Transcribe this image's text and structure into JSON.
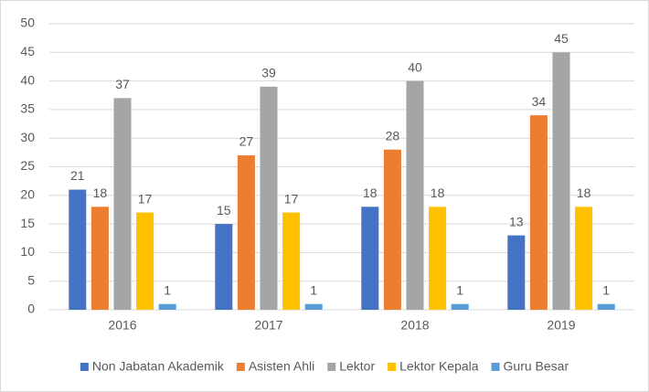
{
  "chart_data": {
    "type": "bar",
    "categories": [
      "2016",
      "2017",
      "2018",
      "2019"
    ],
    "series": [
      {
        "name": "Non Jabatan Akademik",
        "color": "#4472c4",
        "values": [
          21,
          15,
          18,
          13
        ]
      },
      {
        "name": "Asisten Ahli",
        "color": "#ed7d31",
        "values": [
          18,
          27,
          28,
          34
        ]
      },
      {
        "name": "Lektor",
        "color": "#a5a5a5",
        "values": [
          37,
          39,
          40,
          45
        ]
      },
      {
        "name": "Lektor Kepala",
        "color": "#ffc000",
        "values": [
          17,
          17,
          18,
          18
        ]
      },
      {
        "name": "Guru Besar",
        "color": "#5b9bd5",
        "values": [
          1,
          1,
          1,
          1
        ]
      }
    ],
    "ylim": [
      0,
      50
    ],
    "yticks": [
      0,
      5,
      10,
      15,
      20,
      25,
      30,
      35,
      40,
      45,
      50
    ],
    "grid": true,
    "legend": "bottom",
    "data_labels": true
  }
}
